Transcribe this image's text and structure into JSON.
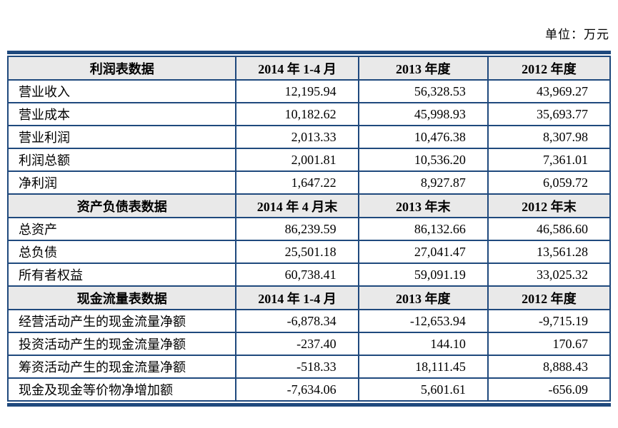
{
  "page": {
    "unit_label": "单位：万元"
  },
  "table": {
    "border_color": "#1F497D",
    "header_bg": "#E9E9E9",
    "sections": [
      {
        "title": "利润表数据",
        "columns": [
          "2014 年 1-4 月",
          "2013 年度",
          "2012 年度"
        ],
        "rows": [
          {
            "label": "营业收入",
            "values": [
              "12,195.94",
              "56,328.53",
              "43,969.27"
            ]
          },
          {
            "label": "营业成本",
            "values": [
              "10,182.62",
              "45,998.93",
              "35,693.77"
            ]
          },
          {
            "label": "营业利润",
            "values": [
              "2,013.33",
              "10,476.38",
              "8,307.98"
            ]
          },
          {
            "label": "利润总额",
            "values": [
              "2,001.81",
              "10,536.20",
              "7,361.01"
            ]
          },
          {
            "label": "净利润",
            "values": [
              "1,647.22",
              "8,927.87",
              "6,059.72"
            ]
          }
        ]
      },
      {
        "title": "资产负债表数据",
        "columns": [
          "2014 年 4 月末",
          "2013 年末",
          "2012 年末"
        ],
        "rows": [
          {
            "label": "总资产",
            "values": [
              "86,239.59",
              "86,132.66",
              "46,586.60"
            ]
          },
          {
            "label": "总负债",
            "values": [
              "25,501.18",
              "27,041.47",
              "13,561.28"
            ]
          },
          {
            "label": "所有者权益",
            "values": [
              "60,738.41",
              "59,091.19",
              "33,025.32"
            ]
          }
        ]
      },
      {
        "title": "现金流量表数据",
        "columns": [
          "2014 年 1-4 月",
          "2013 年度",
          "2012 年度"
        ],
        "rows": [
          {
            "label": "经营活动产生的现金流量净额",
            "values": [
              "-6,878.34",
              "-12,653.94",
              "-9,715.19"
            ]
          },
          {
            "label": "投资活动产生的现金流量净额",
            "values": [
              "-237.40",
              "144.10",
              "170.67"
            ]
          },
          {
            "label": "筹资活动产生的现金流量净额",
            "values": [
              "-518.33",
              "18,111.45",
              "8,888.43"
            ]
          },
          {
            "label": "现金及现金等价物净增加额",
            "values": [
              "-7,634.06",
              "5,601.61",
              "-656.09"
            ]
          }
        ]
      }
    ]
  }
}
